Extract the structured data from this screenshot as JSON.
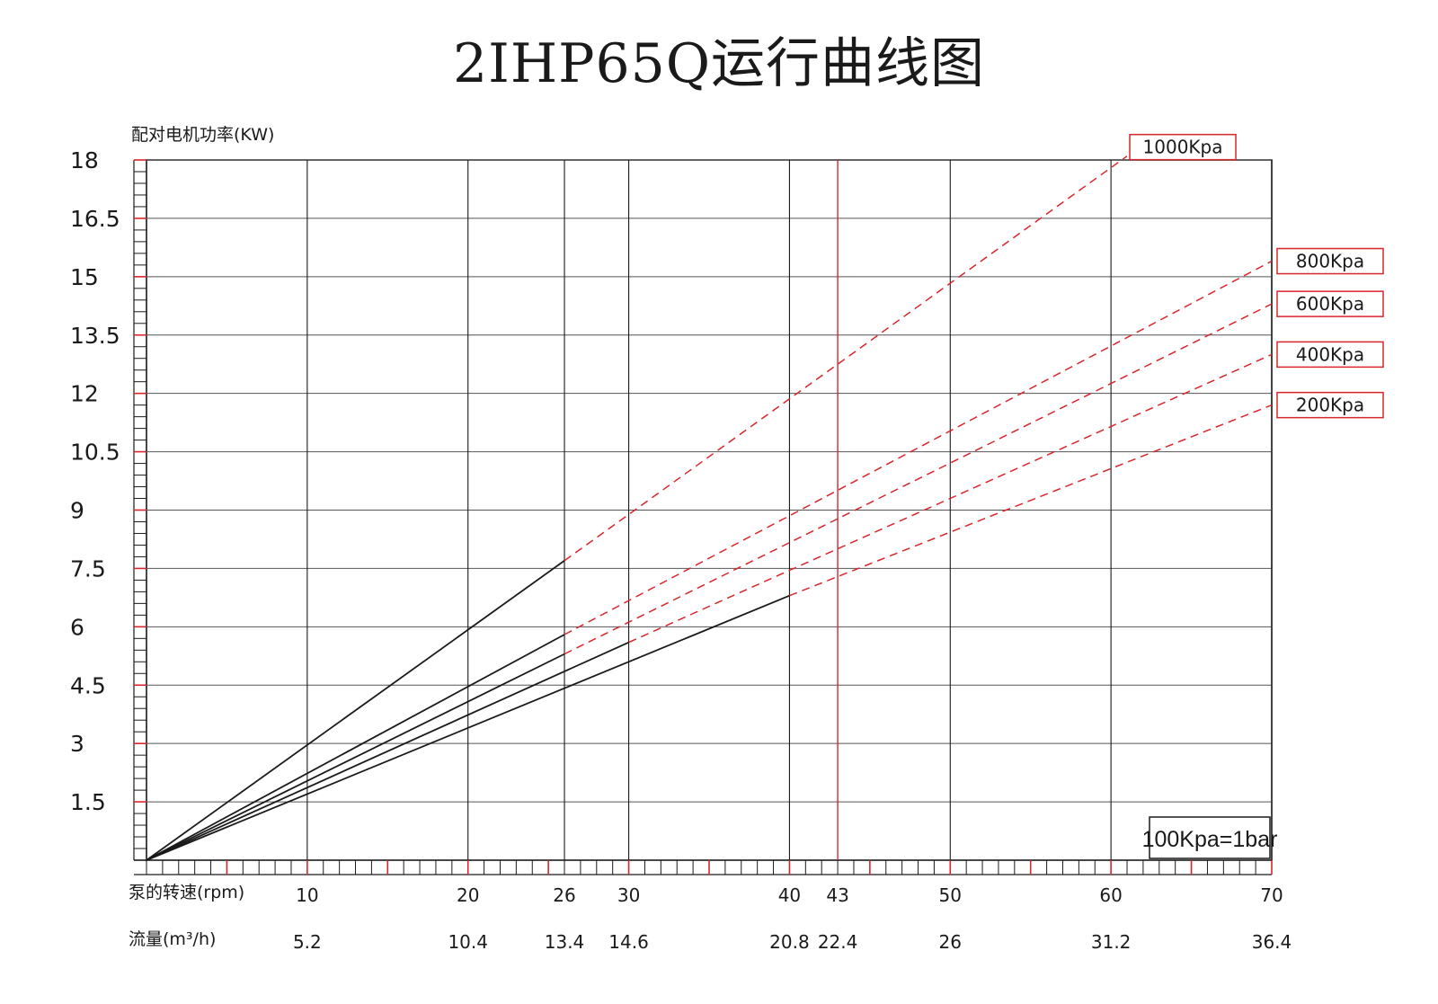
{
  "chart_data": {
    "type": "line",
    "title": "2IHP65Q运行曲线图",
    "ylabel": "配对电机功率(KW)",
    "xlabel_speed": "泵的转速(rpm)",
    "xlabel_flow": "流量(m³/h)",
    "ylim": [
      0,
      18
    ],
    "xlim": [
      0,
      70
    ],
    "y_ticks": [
      "1.5",
      "3",
      "4.5",
      "6",
      "7.5",
      "9",
      "10.5",
      "12",
      "13.5",
      "15",
      "16.5",
      "18"
    ],
    "x_ticks_speed": [
      "10",
      "20",
      "26",
      "30",
      "40",
      "43",
      "50",
      "60",
      "70"
    ],
    "x_ticks_flow": [
      "5.2",
      "10.4",
      "13.4",
      "14.6",
      "20.8",
      "22.4",
      "26",
      "31.2",
      "36.4"
    ],
    "x_tick_values": [
      10,
      20,
      26,
      30,
      40,
      43,
      50,
      60,
      70
    ],
    "grid": true,
    "series": [
      {
        "name": "1000Kpa",
        "solid_to": 26,
        "x_end": 61,
        "values": [
          [
            0,
            0
          ],
          [
            26,
            7.7
          ],
          [
            61,
            18.1
          ]
        ]
      },
      {
        "name": "800Kpa",
        "solid_to": 26,
        "x_end": 70,
        "values": [
          [
            0,
            0
          ],
          [
            26,
            5.8
          ],
          [
            70,
            15.4
          ]
        ]
      },
      {
        "name": "600Kpa",
        "solid_to": 26,
        "x_end": 70,
        "values": [
          [
            0,
            0
          ],
          [
            26,
            5.3
          ],
          [
            70,
            14.3
          ]
        ]
      },
      {
        "name": "400Kpa",
        "solid_to": 30,
        "x_end": 70,
        "values": [
          [
            0,
            0
          ],
          [
            30,
            5.6
          ],
          [
            70,
            13.0
          ]
        ]
      },
      {
        "name": "200Kpa",
        "solid_to": 40,
        "x_end": 70,
        "values": [
          [
            0,
            0
          ],
          [
            40,
            6.8
          ],
          [
            70,
            11.7
          ]
        ]
      }
    ],
    "note": "100Kpa=1bar",
    "colors": {
      "axis": "#1a1a1a",
      "grid": "#555555",
      "accent": "#d9262c"
    }
  }
}
